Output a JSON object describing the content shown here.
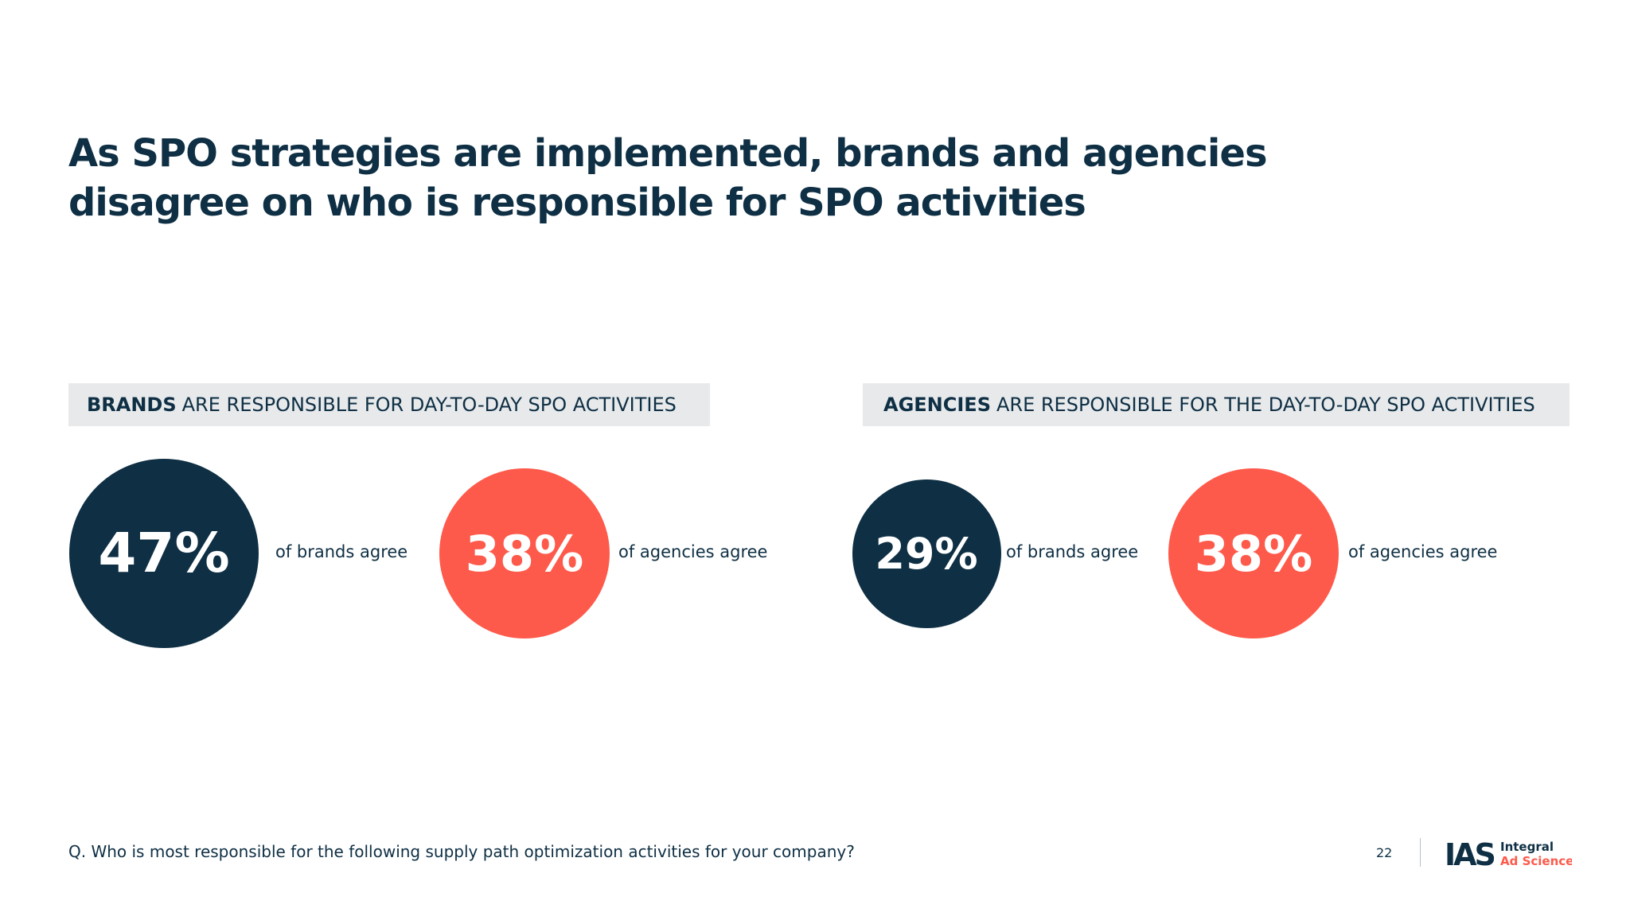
{
  "title": {
    "line1": "As SPO strategies are implemented, brands and agencies",
    "line2": "disagree on who is responsible for SPO activities"
  },
  "chart_data": [
    {
      "type": "bubble",
      "title_bold": "BRANDS",
      "title_rest": "ARE RESPONSIBLE FOR DAY-TO-DAY SPO ACTIVITIES",
      "series": [
        {
          "name": "of brands agree",
          "value": 47,
          "label": "47%",
          "color": "#0e2f44"
        },
        {
          "name": "of agencies agree",
          "value": 38,
          "label": "38%",
          "color": "#fe5a4b"
        }
      ]
    },
    {
      "type": "bubble",
      "title_bold": "AGENCIES",
      "title_rest": "ARE RESPONSIBLE FOR THE DAY-TO-DAY SPO ACTIVITIES",
      "series": [
        {
          "name": "of brands agree",
          "value": 29,
          "label": "29%",
          "color": "#0e2f44"
        },
        {
          "name": "of agencies agree",
          "value": 38,
          "label": "38%",
          "color": "#fe5a4b"
        }
      ]
    }
  ],
  "footer": {
    "question": "Q. Who is most responsible for the following supply path optimization activities for your company?",
    "page_number": "22",
    "logo_mark": "IAS",
    "logo_line1": "Integral",
    "logo_line2": "Ad Science"
  },
  "colors": {
    "navy": "#0e2f44",
    "coral": "#fe5a4b",
    "banner_bg": "#e7e9eb"
  }
}
